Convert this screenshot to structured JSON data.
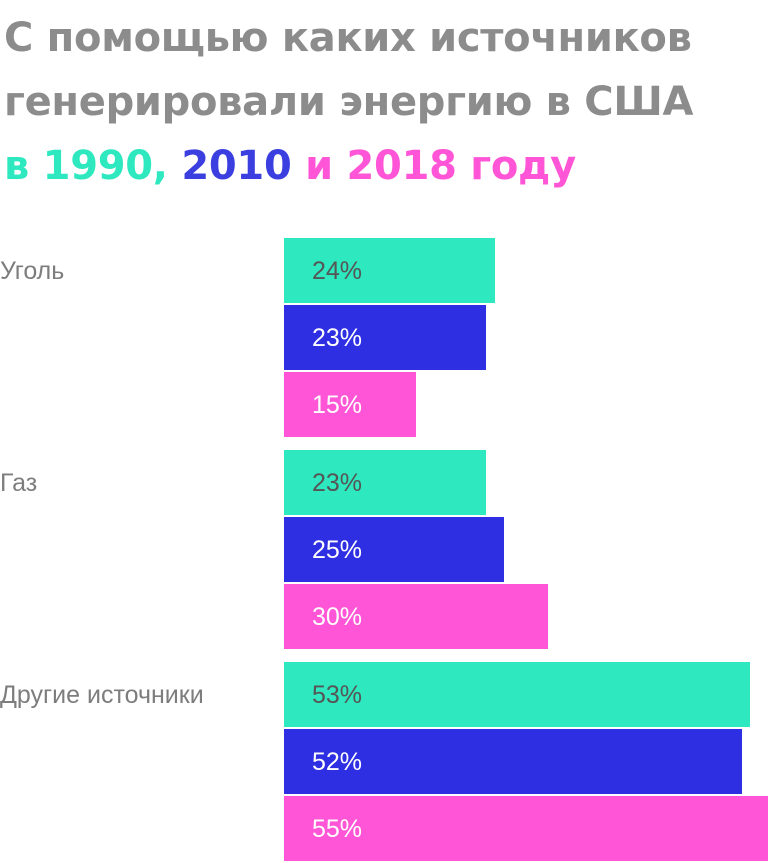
{
  "chart_data": {
    "type": "bar",
    "orientation": "horizontal",
    "title": "С помощью каких источников генерировали энергию в США в 1990, 2010 и 2018 году",
    "title_parts": {
      "line1": "С помощью каких источников",
      "line2": "генерировали энергию в США",
      "prefix": "в",
      "year1": "1990",
      "sep": ",",
      "year2": "2010",
      "conj": "и",
      "year3": "2018",
      "suffix": "году"
    },
    "categories": [
      "Уголь",
      "Газ",
      "Другие источники"
    ],
    "series": [
      {
        "name": "1990",
        "color": "#2ee8bf",
        "label_color": "#555555",
        "values": [
          24,
          23,
          53
        ]
      },
      {
        "name": "2010",
        "color": "#2e2ee3",
        "label_color": "#ffffff",
        "values": [
          23,
          25,
          52
        ]
      },
      {
        "name": "2018",
        "color": "#ff55d6",
        "label_color": "#ffffff",
        "values": [
          15,
          30,
          55
        ]
      }
    ],
    "unit": "%",
    "xlim": [
      0,
      55
    ]
  }
}
